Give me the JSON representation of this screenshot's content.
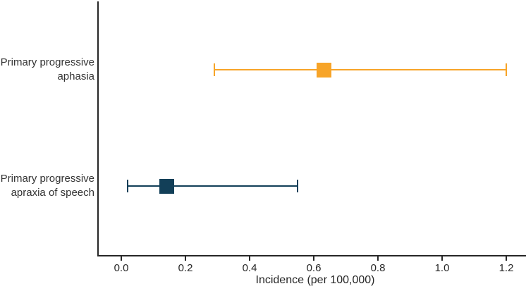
{
  "chart_data": {
    "type": "scatter",
    "subtype": "forest-plot-error-bars",
    "orientation": "horizontal",
    "title": "",
    "xlabel": "Incidence (per 100,000)",
    "ylabel": "",
    "xlim": [
      0,
      1.2
    ],
    "x_ticks": [
      0.0,
      0.2,
      0.4,
      0.6,
      0.8,
      1.0,
      1.2
    ],
    "x_tick_labels": [
      "0.0",
      "0.2",
      "0.4",
      "0.6",
      "0.8",
      "1.0",
      "1.2"
    ],
    "grid": false,
    "legend": false,
    "categories": [
      "Primary progressive aphasia",
      "Primary progressive apraxia of speech"
    ],
    "series": [
      {
        "name": "Primary progressive aphasia",
        "label_lines": [
          "Primary progressive",
          "aphasia"
        ],
        "value": 0.63,
        "ci_low": 0.29,
        "ci_high": 1.2,
        "color": "#F7A428",
        "marker": "square"
      },
      {
        "name": "Primary progressive apraxia of speech",
        "label_lines": [
          "Primary progressive",
          "apraxia of speech"
        ],
        "value": 0.14,
        "ci_low": 0.02,
        "ci_high": 0.55,
        "color": "#123F58",
        "marker": "square"
      }
    ],
    "colors": {
      "axis": "#262626",
      "tick_text": "#262626",
      "label_text": "#333333",
      "background": "#FFFFFF"
    }
  }
}
